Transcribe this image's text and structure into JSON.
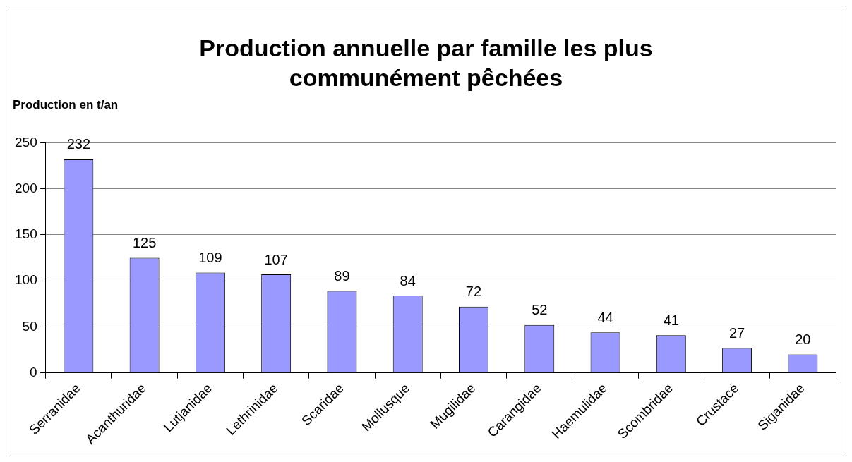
{
  "chart_data": {
    "type": "bar",
    "title": "Production annuelle par famille les plus communément pêchées",
    "ylabel": "Production en t/an",
    "categories": [
      "Serranidae",
      "Acanthuridae",
      "Lutjanidae",
      "Lethrinidae",
      "Scaridae",
      "Mollusque",
      "Mugilidae",
      "Carangidae",
      "Haemulidae",
      "Scombridae",
      "Crustacé",
      "Siganidae"
    ],
    "values": [
      232,
      125,
      109,
      107,
      89,
      84,
      72,
      52,
      44,
      41,
      27,
      20
    ],
    "color": "#9999ff",
    "ylim": [
      0,
      250
    ],
    "yticks": [
      0,
      50,
      100,
      150,
      200,
      250
    ],
    "grid": "y",
    "data_labels": true,
    "legend": false
  }
}
